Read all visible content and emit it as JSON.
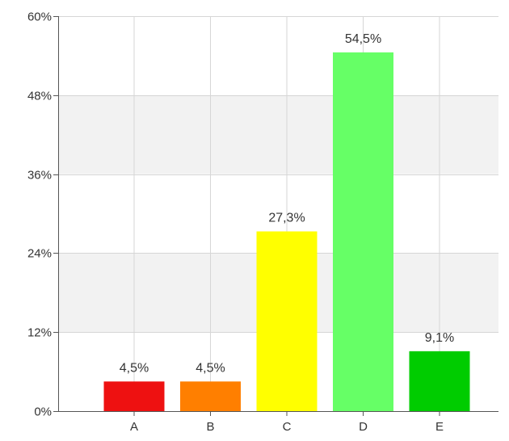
{
  "chart_data": {
    "type": "bar",
    "title": "",
    "xlabel": "",
    "ylabel": "",
    "categories": [
      "A",
      "B",
      "C",
      "D",
      "E"
    ],
    "values": [
      4.5,
      4.5,
      27.3,
      54.5,
      9.1
    ],
    "value_labels": [
      "4,5%",
      "4,5%",
      "27,3%",
      "54,5%",
      "9,1%"
    ],
    "bar_colors": [
      "#ee1111",
      "#ff7f00",
      "#ffff00",
      "#66ff66",
      "#00cc00"
    ],
    "ylim": [
      0,
      60
    ],
    "yticks": [
      0,
      12,
      24,
      36,
      48,
      60
    ],
    "ytick_labels": [
      "0%",
      "12%",
      "24%",
      "36%",
      "48%",
      "60%"
    ],
    "grid": true,
    "band_color": "#f2f2f2",
    "grid_color": "#d6d6d6",
    "axis_color": "#555555"
  }
}
